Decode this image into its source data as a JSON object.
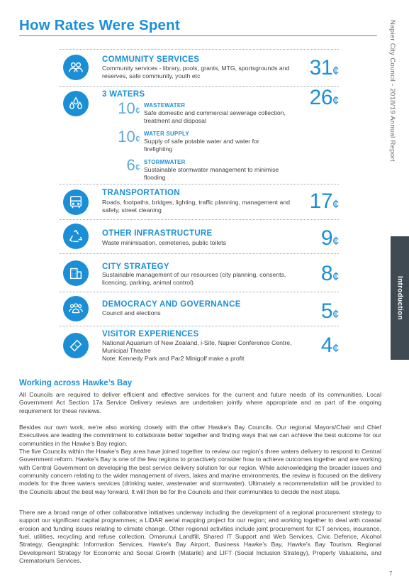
{
  "page": {
    "title": "How Rates Were Spent",
    "side_text": "Napier City Council - 2018/19 Annual Report",
    "side_tab": "Introduction",
    "page_number": "7"
  },
  "categories": [
    {
      "title": "COMMUNITY SERVICES",
      "desc": "Community services - library, pools, grants, MTG, sportsgrounds and reserves, safe community, youth etc",
      "cents": "31",
      "icon": "community-people-icon"
    },
    {
      "title": "3 WATERS",
      "desc": "",
      "cents": "26",
      "icon": "water-drops-icon",
      "subs": [
        {
          "title": "WASTEWATER",
          "desc": "Safe domestic and commercial sewerage collection, treatment and disposal",
          "cents": "10"
        },
        {
          "title": "WATER SUPPLY",
          "desc": "Supply of safe potable water and water for firefighting",
          "cents": "10"
        },
        {
          "title": "STORMWATER",
          "desc": "Sustainable stormwater management to minimise flooding",
          "cents": "6"
        }
      ]
    },
    {
      "title": "TRANSPORTATION",
      "desc": "Roads, footpaths, bridges, lighting, traffic planning, management and safety, street cleaning",
      "cents": "17",
      "icon": "bus-icon"
    },
    {
      "title": "OTHER INFRASTRUCTURE",
      "desc": "Waste minimisation, cemeteries, public toilets",
      "cents": "9",
      "icon": "recycle-icon"
    },
    {
      "title": "CITY STRATEGY",
      "desc": "Sustainable management of our resources (city planning, consents, licencing, parking, animal control)",
      "cents": "8",
      "icon": "building-icon"
    },
    {
      "title": "DEMOCRACY AND GOVERNANCE",
      "desc": "Council and elections",
      "cents": "5",
      "icon": "group-icon"
    },
    {
      "title": "VISITOR EXPERIENCES",
      "desc": "National Aquarium of New Zealand, i-Site, Napier Conference Centre, Municipal Theatre\nNote: Kennedy Park and Par2 Minigolf make a profit",
      "cents": "4",
      "icon": "ticket-icon"
    }
  ],
  "cent_symbol": "¢",
  "section": {
    "heading": "Working across Hawke’s Bay",
    "paragraphs": [
      "All Councils are required to deliver efficient and effective services for the current and future needs of its communities. Local Government Act Section 17a Service Delivery reviews are undertaken jointly where appropriate and as part of the ongoing requirement for these reviews.",
      "Besides our own work, we’re also working closely with the other Hawke’s Bay Councils. Our regional Mayors/Chair and Chief Executives are leading the commitment to collaborate better together and finding ways that we can achieve the best outcome for our communities in the Hawke’s Bay region.",
      "The five Councils within the Hawke’s Bay area have joined together to review our region’s three waters delivery to respond to Central Government reform. Hawke’s Bay is one of the few regions to proactively consider how to achieve outcomes together and are working with Central Government on developing the best service delivery solution for our region. While acknowledging the broader issues and community concern relating to the wider management of rivers, lakes and marine environments, the review is focused on the delivery models for the three waters services (drinking water, wastewater and stormwater). Ultimately a recommendation will be provided to the Councils about the best way forward. It will then be for the Councils and their communities to decide the next steps.",
      "There are a broad range of other collaborative initiatives underway including the development of a regional procurement strategy to support our significant capital programmes; a LiDAR aerial mapping project for our region; and working together to deal with coastal erosion and funding issues relating to climate change. Other regional activities include joint procurement for ICT services, insurance, fuel, utilities, recycling and refuse collection, Omarunui Landfill, Shared IT Support and Web Services, Civic Defence, Alcohol Strategy, Geographic Information Services, Hawke’s Bay Airport, Business Hawke’s Bay, Hawke’s Bay Tourism, Regional Development Strategy for Economic and Social Growth (Matariki) and LIFT (Social Inclusion Strategy), Property Valuations, and Crematorium Services."
    ]
  },
  "colors": {
    "accent": "#1b8fd6",
    "tab": "#3f4a53",
    "text": "#3f3f3f"
  }
}
